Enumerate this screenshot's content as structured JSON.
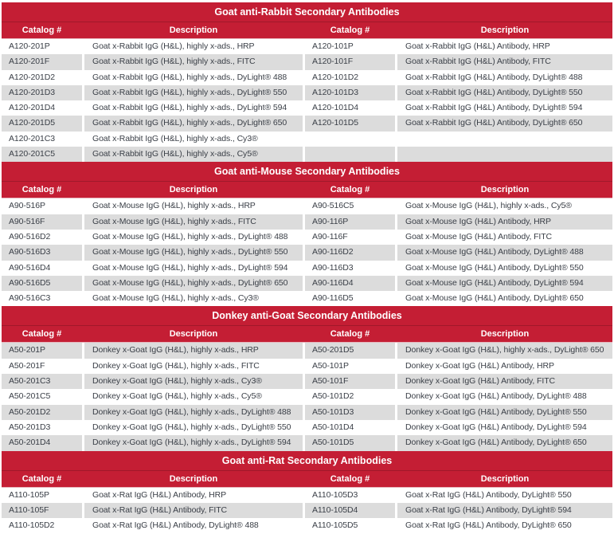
{
  "colors": {
    "accent_red": "#c41e34",
    "accent_red_dark": "#a31325",
    "row_stripe": "#dcdcdc",
    "body_text": "#3a3f47",
    "header_text": "#ffffff"
  },
  "column_headers": [
    "Catalog #",
    "Description",
    "Catalog #",
    "Description"
  ],
  "sections": [
    {
      "id": "goat-anti-rabbit",
      "title": "Goat anti-Rabbit Secondary Antibodies",
      "rows": [
        [
          "A120-201P",
          "Goat x-Rabbit IgG (H&L), highly x-ads., HRP",
          "A120-101P",
          "Goat x-Rabbit IgG (H&L) Antibody, HRP"
        ],
        [
          "A120-201F",
          "Goat x-Rabbit IgG (H&L), highly x-ads., FITC",
          "A120-101F",
          "Goat x-Rabbit IgG (H&L) Antibody, FITC"
        ],
        [
          "A120-201D2",
          "Goat x-Rabbit IgG (H&L), highly x-ads., DyLight® 488",
          "A120-101D2",
          "Goat x-Rabbit IgG (H&L) Antibody, DyLight® 488"
        ],
        [
          "A120-201D3",
          "Goat x-Rabbit IgG (H&L), highly x-ads., DyLight® 550",
          "A120-101D3",
          "Goat x-Rabbit IgG (H&L) Antibody, DyLight® 550"
        ],
        [
          "A120-201D4",
          "Goat x-Rabbit IgG (H&L), highly x-ads., DyLight® 594",
          "A120-101D4",
          "Goat x-Rabbit IgG (H&L) Antibody, DyLight® 594"
        ],
        [
          "A120-201D5",
          "Goat x-Rabbit IgG (H&L), highly x-ads., DyLight® 650",
          "A120-101D5",
          "Goat x-Rabbit IgG (H&L) Antibody, DyLight® 650"
        ],
        [
          "A120-201C3",
          "Goat x-Rabbit IgG (H&L), highly x-ads., Cy3®",
          "",
          ""
        ],
        [
          "A120-201C5",
          "Goat x-Rabbit IgG (H&L), highly x-ads., Cy5®",
          "",
          ""
        ]
      ]
    },
    {
      "id": "goat-anti-mouse",
      "title": "Goat anti-Mouse Secondary Antibodies",
      "rows": [
        [
          "A90-516P",
          "Goat x-Mouse IgG (H&L), highly x-ads., HRP",
          "A90-516C5",
          "Goat x-Mouse IgG (H&L), highly x-ads., Cy5®"
        ],
        [
          "A90-516F",
          "Goat x-Mouse IgG (H&L), highly x-ads., FITC",
          "A90-116P",
          "Goat x-Mouse IgG (H&L) Antibody, HRP"
        ],
        [
          "A90-516D2",
          "Goat x-Mouse IgG (H&L), highly x-ads., DyLight® 488",
          "A90-116F",
          "Goat x-Mouse IgG (H&L) Antibody, FITC"
        ],
        [
          "A90-516D3",
          "Goat x-Mouse IgG (H&L), highly x-ads., DyLight® 550",
          "A90-116D2",
          "Goat x-Mouse IgG (H&L) Antibody, DyLight® 488"
        ],
        [
          "A90-516D4",
          "Goat x-Mouse IgG (H&L), highly x-ads., DyLight® 594",
          "A90-116D3",
          "Goat x-Mouse IgG (H&L) Antibody, DyLight® 550"
        ],
        [
          "A90-516D5",
          "Goat x-Mouse IgG (H&L), highly x-ads., DyLight® 650",
          "A90-116D4",
          "Goat x-Mouse IgG (H&L) Antibody, DyLight® 594"
        ],
        [
          "A90-516C3",
          "Goat x-Mouse IgG (H&L), highly x-ads., Cy3®",
          "A90-116D5",
          "Goat x-Mouse IgG (H&L) Antibody, DyLight® 650"
        ]
      ]
    },
    {
      "id": "donkey-anti-goat",
      "title": "Donkey anti-Goat Secondary Antibodies",
      "rows": [
        [
          "A50-201P",
          "Donkey x-Goat IgG (H&L), highly x-ads., HRP",
          "A50-201D5",
          "Donkey x-Goat IgG (H&L), highly x-ads., DyLight® 650"
        ],
        [
          "A50-201F",
          "Donkey x-Goat IgG (H&L), highly x-ads., FITC",
          "A50-101P",
          "Donkey x-Goat IgG (H&L) Antibody, HRP"
        ],
        [
          "A50-201C3",
          "Donkey x-Goat IgG (H&L), highly x-ads., Cy3®",
          "A50-101F",
          "Donkey x-Goat IgG (H&L) Antibody, FITC"
        ],
        [
          "A50-201C5",
          "Donkey x-Goat IgG (H&L), highly x-ads., Cy5®",
          "A50-101D2",
          "Donkey x-Goat IgG (H&L) Antibody, DyLight® 488"
        ],
        [
          "A50-201D2",
          "Donkey x-Goat IgG (H&L), highly x-ads., DyLight® 488",
          "A50-101D3",
          "Donkey x-Goat IgG (H&L) Antibody, DyLight® 550"
        ],
        [
          "A50-201D3",
          "Donkey x-Goat IgG (H&L), highly x-ads., DyLight® 550",
          "A50-101D4",
          "Donkey x-Goat IgG (H&L) Antibody, DyLight® 594"
        ],
        [
          "A50-201D4",
          "Donkey x-Goat IgG (H&L), highly x-ads., DyLight® 594",
          "A50-101D5",
          "Donkey x-Goat IgG (H&L) Antibody, DyLight® 650"
        ]
      ]
    },
    {
      "id": "goat-anti-rat",
      "title": "Goat anti-Rat Secondary Antibodies",
      "rows": [
        [
          "A110-105P",
          "Goat x-Rat IgG (H&L) Antibody, HRP",
          "A110-105D3",
          "Goat x-Rat IgG (H&L) Antibody, DyLight® 550"
        ],
        [
          "A110-105F",
          "Goat x-Rat IgG (H&L) Antibody, FITC",
          "A110-105D4",
          "Goat x-Rat IgG (H&L) Antibody, DyLight® 594"
        ],
        [
          "A110-105D2",
          "Goat x-Rat IgG (H&L) Antibody, DyLight® 488",
          "A110-105D5",
          "Goat x-Rat IgG (H&L) Antibody, DyLight® 650"
        ]
      ]
    }
  ]
}
